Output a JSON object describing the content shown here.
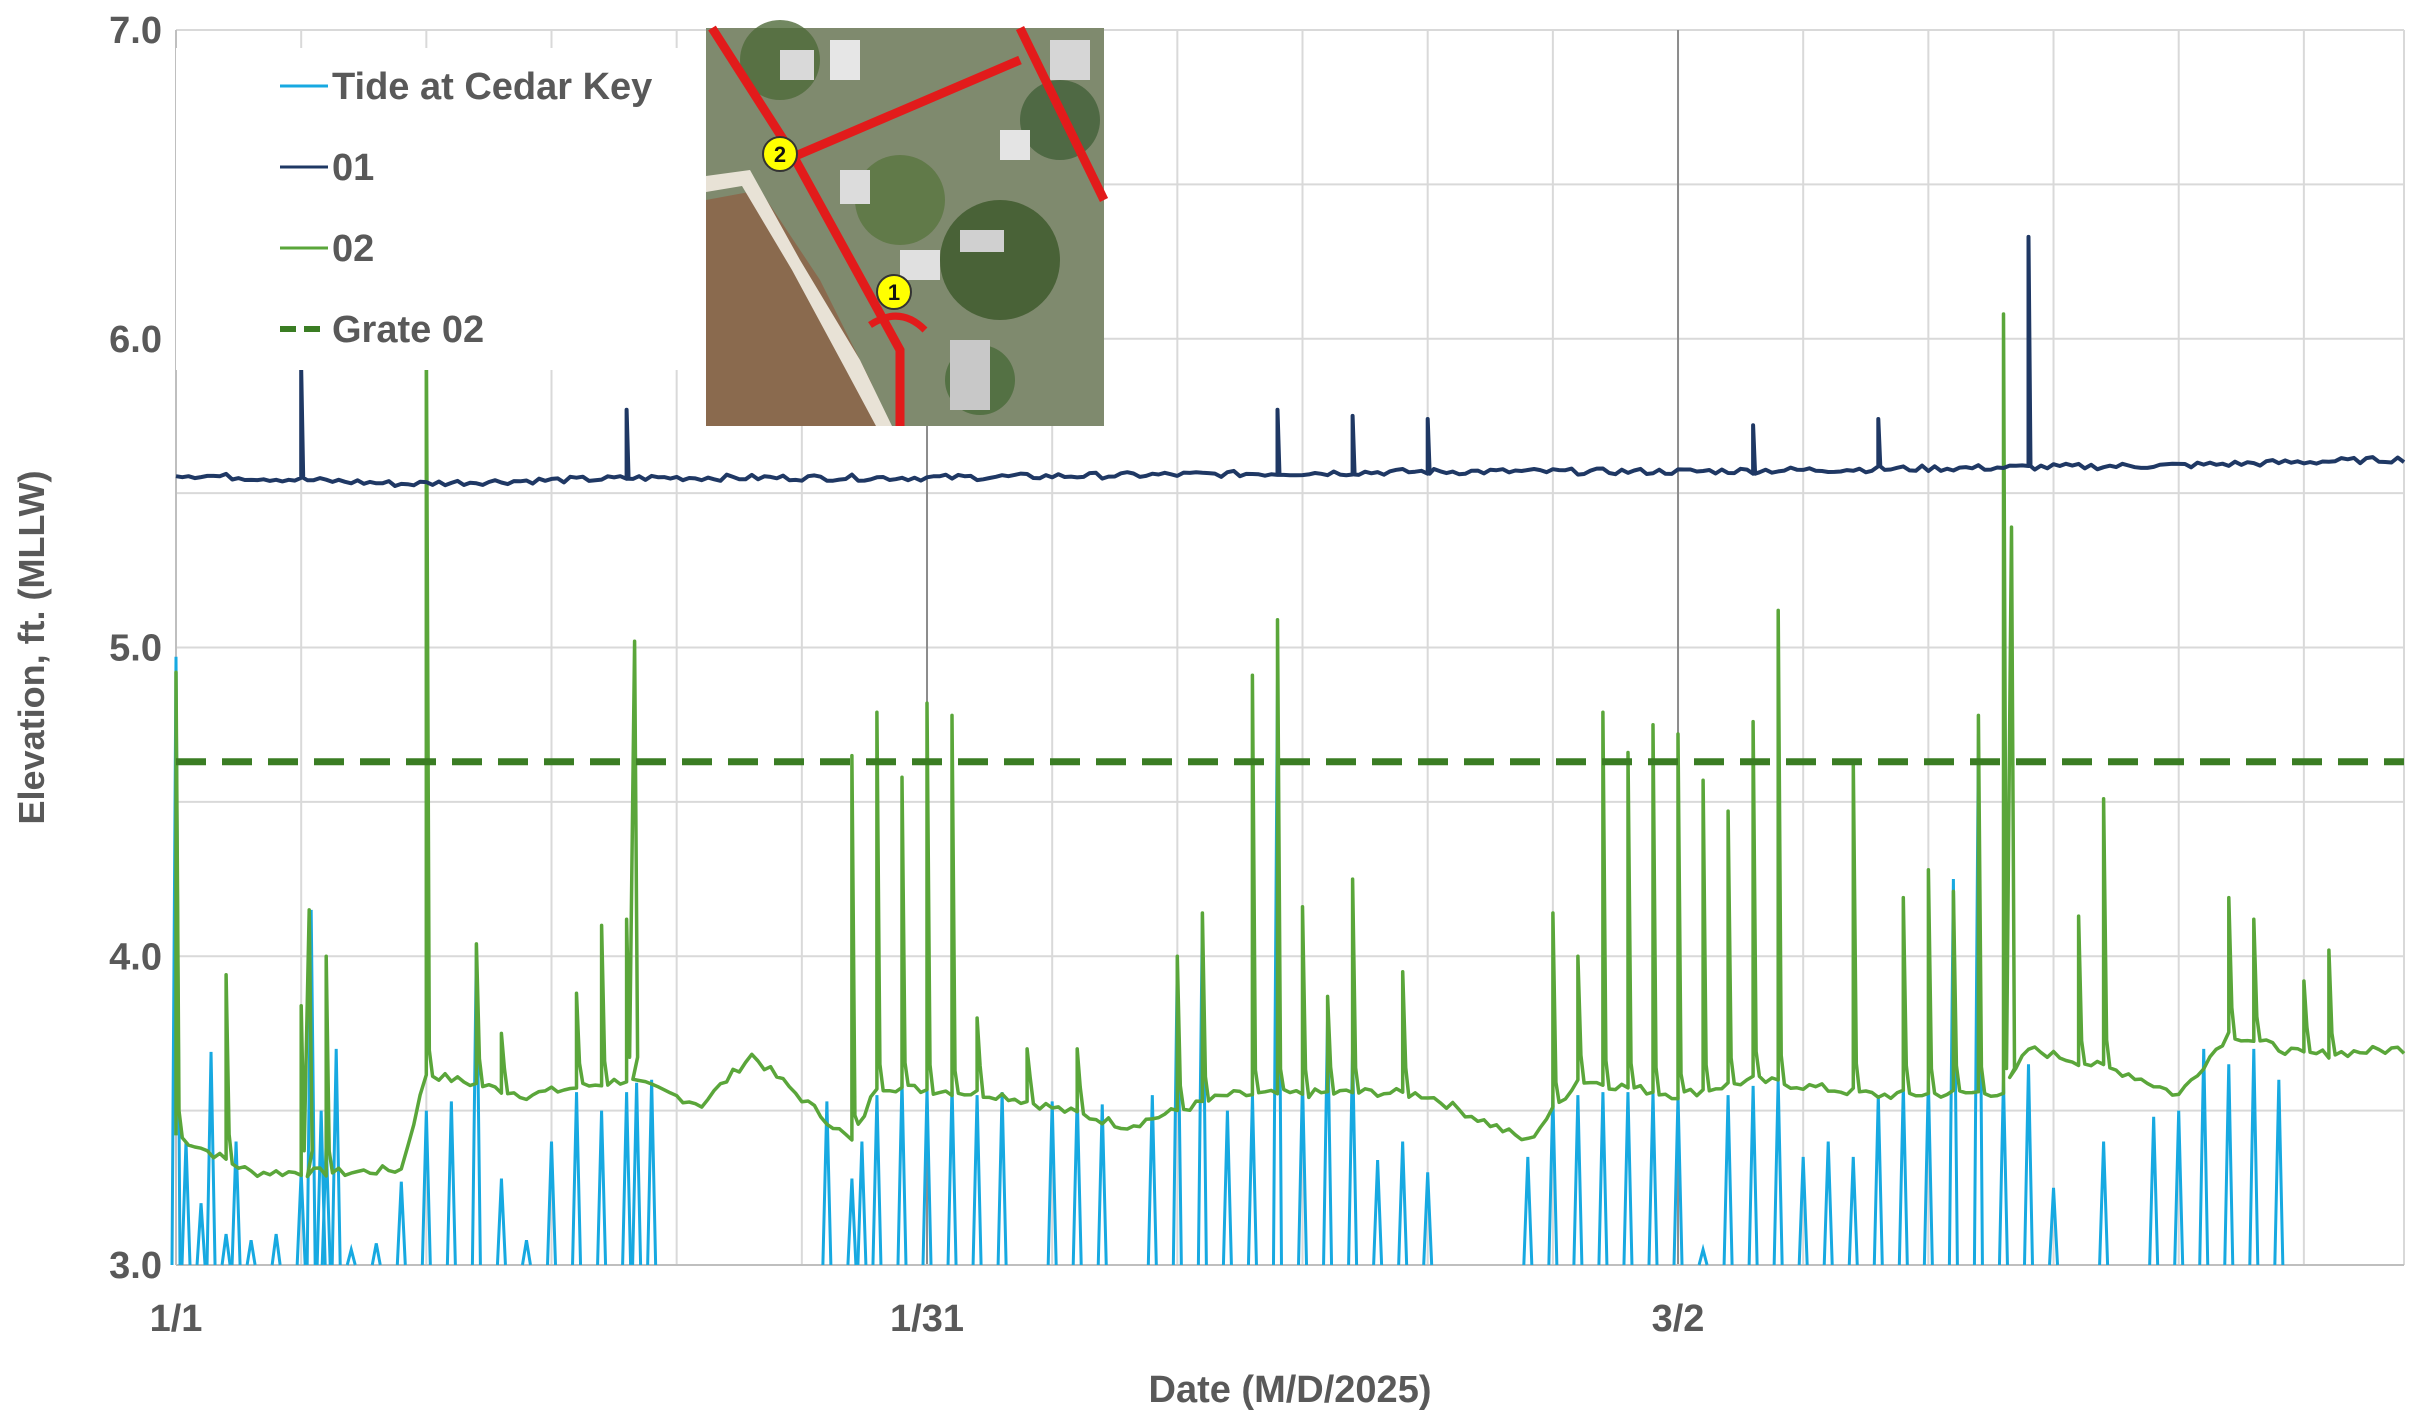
{
  "chart_data": {
    "type": "line",
    "xlabel": "Date (M/D/2025)",
    "ylabel": "Elevation, ft. (MLLW)",
    "x_range": [
      "2025-01-01",
      "2025-03-31"
    ],
    "ylim": [
      3.0,
      7.0
    ],
    "yticks": [
      "3.0",
      "4.0",
      "5.0",
      "6.0",
      "7.0"
    ],
    "xticks": [
      {
        "date": "2025-01-01",
        "label": "1/1"
      },
      {
        "date": "2025-01-31",
        "label": "1/31"
      },
      {
        "date": "2025-03-02",
        "label": "3/2"
      }
    ],
    "grid": true,
    "legend_placement": "top-left",
    "inset_image": {
      "markers": [
        "1",
        "2"
      ]
    },
    "series": [
      {
        "name": "Tide at Cedar Key",
        "color": "#17a9e1",
        "style": "solid",
        "note_values": "tide peaks (date, elevation ft); values floor at 3.0 between peaks",
        "peaks": [
          [
            "2025-01-01",
            4.97
          ],
          [
            "2025-01-01",
            3.4
          ],
          [
            "2025-01-02",
            3.2
          ],
          [
            "2025-01-02",
            3.69
          ],
          [
            "2025-01-03",
            3.1
          ],
          [
            "2025-01-03",
            3.4
          ],
          [
            "2025-01-04",
            3.08
          ],
          [
            "2025-01-05",
            3.1
          ],
          [
            "2025-01-06",
            3.3
          ],
          [
            "2025-01-06",
            4.15
          ],
          [
            "2025-01-06",
            3.5
          ],
          [
            "2025-01-07",
            3.4
          ],
          [
            "2025-01-07",
            3.7
          ],
          [
            "2025-01-08",
            3.05
          ],
          [
            "2025-01-09",
            3.07
          ],
          [
            "2025-01-10",
            3.27
          ],
          [
            "2025-01-11",
            3.5
          ],
          [
            "2025-01-12",
            3.53
          ],
          [
            "2025-01-13",
            4.04
          ],
          [
            "2025-01-14",
            3.28
          ],
          [
            "2025-01-15",
            3.08
          ],
          [
            "2025-01-16",
            3.4
          ],
          [
            "2025-01-17",
            3.56
          ],
          [
            "2025-01-18",
            3.5
          ],
          [
            "2025-01-19",
            3.56
          ],
          [
            "2025-01-19",
            3.59
          ],
          [
            "2025-01-20",
            3.6
          ],
          [
            "2025-01-27",
            3.53
          ],
          [
            "2025-01-28",
            3.28
          ],
          [
            "2025-01-28",
            3.4
          ],
          [
            "2025-01-29",
            3.55
          ],
          [
            "2025-01-30",
            3.6
          ],
          [
            "2025-01-31",
            3.57
          ],
          [
            "2025-02-01",
            3.58
          ],
          [
            "2025-02-02",
            3.55
          ],
          [
            "2025-02-03",
            3.56
          ],
          [
            "2025-02-05",
            3.53
          ],
          [
            "2025-02-06",
            3.55
          ],
          [
            "2025-02-07",
            3.52
          ],
          [
            "2025-02-09",
            3.55
          ],
          [
            "2025-02-10",
            4.0
          ],
          [
            "2025-02-11",
            4.14
          ],
          [
            "2025-02-12",
            3.5
          ],
          [
            "2025-02-13",
            3.55
          ],
          [
            "2025-02-14",
            4.9
          ],
          [
            "2025-02-15",
            3.6
          ],
          [
            "2025-02-16",
            3.8
          ],
          [
            "2025-02-17",
            3.7
          ],
          [
            "2025-02-18",
            3.34
          ],
          [
            "2025-02-19",
            3.4
          ],
          [
            "2025-02-20",
            3.3
          ],
          [
            "2025-02-24",
            3.35
          ],
          [
            "2025-02-25",
            3.55
          ],
          [
            "2025-02-26",
            3.55
          ],
          [
            "2025-02-27",
            3.56
          ],
          [
            "2025-02-28",
            3.56
          ],
          [
            "2025-03-01",
            3.56
          ],
          [
            "2025-03-02",
            3.55
          ],
          [
            "2025-03-03",
            3.05
          ],
          [
            "2025-03-04",
            3.55
          ],
          [
            "2025-03-05",
            3.58
          ],
          [
            "2025-03-06",
            3.6
          ],
          [
            "2025-03-07",
            3.35
          ],
          [
            "2025-03-08",
            3.4
          ],
          [
            "2025-03-09",
            3.35
          ],
          [
            "2025-03-10",
            3.55
          ],
          [
            "2025-03-11",
            3.58
          ],
          [
            "2025-03-12",
            3.6
          ],
          [
            "2025-03-13",
            4.25
          ],
          [
            "2025-03-14",
            4.72
          ],
          [
            "2025-03-15",
            3.6
          ],
          [
            "2025-03-16",
            3.65
          ],
          [
            "2025-03-17",
            3.25
          ],
          [
            "2025-03-19",
            3.4
          ],
          [
            "2025-03-21",
            3.48
          ],
          [
            "2025-03-22",
            3.5
          ],
          [
            "2025-03-23",
            3.7
          ],
          [
            "2025-03-24",
            3.65
          ],
          [
            "2025-03-25",
            3.7
          ],
          [
            "2025-03-26",
            3.6
          ]
        ]
      },
      {
        "name": "01",
        "color": "#1f3864",
        "style": "solid",
        "note_values": "near-flat baseline ~5.55 ft with isolated spikes",
        "baseline": [
          [
            "2025-01-01",
            5.56
          ],
          [
            "2025-01-10",
            5.53
          ],
          [
            "2025-01-20",
            5.55
          ],
          [
            "2025-01-31",
            5.55
          ],
          [
            "2025-02-10",
            5.56
          ],
          [
            "2025-02-20",
            5.57
          ],
          [
            "2025-03-02",
            5.57
          ],
          [
            "2025-03-12",
            5.58
          ],
          [
            "2025-03-22",
            5.59
          ],
          [
            "2025-03-31",
            5.61
          ]
        ],
        "spikes": [
          [
            "2025-01-06",
            5.9
          ],
          [
            "2025-01-19",
            5.77
          ],
          [
            "2025-02-14",
            5.77
          ],
          [
            "2025-02-17",
            5.75
          ],
          [
            "2025-02-20",
            5.74
          ],
          [
            "2025-03-05",
            5.72
          ],
          [
            "2025-03-10",
            5.74
          ],
          [
            "2025-03-16",
            6.33
          ]
        ]
      },
      {
        "name": "02",
        "color": "#5aa63a",
        "style": "solid",
        "note_values": "baseline with sharp recurring spikes (date, elevation ft)",
        "baseline": [
          [
            "2025-01-01",
            3.42
          ],
          [
            "2025-01-04",
            3.3
          ],
          [
            "2025-01-08",
            3.3
          ],
          [
            "2025-01-10",
            3.31
          ],
          [
            "2025-01-11",
            3.62
          ],
          [
            "2025-01-15",
            3.55
          ],
          [
            "2025-01-19",
            3.6
          ],
          [
            "2025-01-22",
            3.52
          ],
          [
            "2025-01-24",
            3.68
          ],
          [
            "2025-01-28",
            3.4
          ],
          [
            "2025-01-29",
            3.58
          ],
          [
            "2025-02-03",
            3.55
          ],
          [
            "2025-02-08",
            3.45
          ],
          [
            "2025-02-12",
            3.55
          ],
          [
            "2025-02-18",
            3.56
          ],
          [
            "2025-02-20",
            3.55
          ],
          [
            "2025-02-24",
            3.4
          ],
          [
            "2025-02-26",
            3.6
          ],
          [
            "2025-03-02",
            3.55
          ],
          [
            "2025-03-05",
            3.6
          ],
          [
            "2025-03-10",
            3.55
          ],
          [
            "2025-03-15",
            3.56
          ],
          [
            "2025-03-16",
            3.7
          ],
          [
            "2025-03-20",
            3.62
          ],
          [
            "2025-03-22",
            3.55
          ],
          [
            "2025-03-24",
            3.75
          ],
          [
            "2025-03-27",
            3.68
          ],
          [
            "2025-03-31",
            3.7
          ]
        ],
        "spikes": [
          [
            "2025-01-01",
            4.92
          ],
          [
            "2025-01-03",
            3.94
          ],
          [
            "2025-01-06",
            3.84
          ],
          [
            "2025-01-06",
            4.15
          ],
          [
            "2025-01-07",
            4.0
          ],
          [
            "2025-01-11",
            6.04
          ],
          [
            "2025-01-13",
            4.04
          ],
          [
            "2025-01-14",
            3.75
          ],
          [
            "2025-01-17",
            3.88
          ],
          [
            "2025-01-18",
            4.1
          ],
          [
            "2025-01-19",
            4.12
          ],
          [
            "2025-01-19",
            5.02
          ],
          [
            "2025-01-28",
            4.65
          ],
          [
            "2025-01-29",
            4.79
          ],
          [
            "2025-01-30",
            4.58
          ],
          [
            "2025-01-31",
            4.82
          ],
          [
            "2025-02-01",
            4.78
          ],
          [
            "2025-02-02",
            3.8
          ],
          [
            "2025-02-04",
            3.7
          ],
          [
            "2025-02-06",
            3.7
          ],
          [
            "2025-02-10",
            4.0
          ],
          [
            "2025-02-11",
            4.14
          ],
          [
            "2025-02-13",
            4.91
          ],
          [
            "2025-02-14",
            5.09
          ],
          [
            "2025-02-15",
            4.16
          ],
          [
            "2025-02-16",
            3.87
          ],
          [
            "2025-02-17",
            4.25
          ],
          [
            "2025-02-19",
            3.95
          ],
          [
            "2025-02-25",
            4.14
          ],
          [
            "2025-02-26",
            4.0
          ],
          [
            "2025-02-27",
            4.79
          ],
          [
            "2025-02-28",
            4.66
          ],
          [
            "2025-03-01",
            4.75
          ],
          [
            "2025-03-02",
            4.72
          ],
          [
            "2025-03-03",
            4.57
          ],
          [
            "2025-03-04",
            4.47
          ],
          [
            "2025-03-05",
            4.76
          ],
          [
            "2025-03-06",
            5.12
          ],
          [
            "2025-03-09",
            4.62
          ],
          [
            "2025-03-11",
            4.19
          ],
          [
            "2025-03-12",
            4.28
          ],
          [
            "2025-03-13",
            4.21
          ],
          [
            "2025-03-14",
            4.78
          ],
          [
            "2025-03-15",
            6.08
          ],
          [
            "2025-03-15",
            5.39
          ],
          [
            "2025-03-18",
            4.13
          ],
          [
            "2025-03-19",
            4.51
          ],
          [
            "2025-03-24",
            4.19
          ],
          [
            "2025-03-25",
            4.12
          ],
          [
            "2025-03-27",
            3.92
          ],
          [
            "2025-03-28",
            4.02
          ]
        ]
      },
      {
        "name": "Grate 02",
        "color": "#3a7d23",
        "style": "dashed",
        "values": [
          [
            "2025-01-01",
            4.63
          ],
          [
            "2025-03-31",
            4.63
          ]
        ]
      }
    ]
  }
}
